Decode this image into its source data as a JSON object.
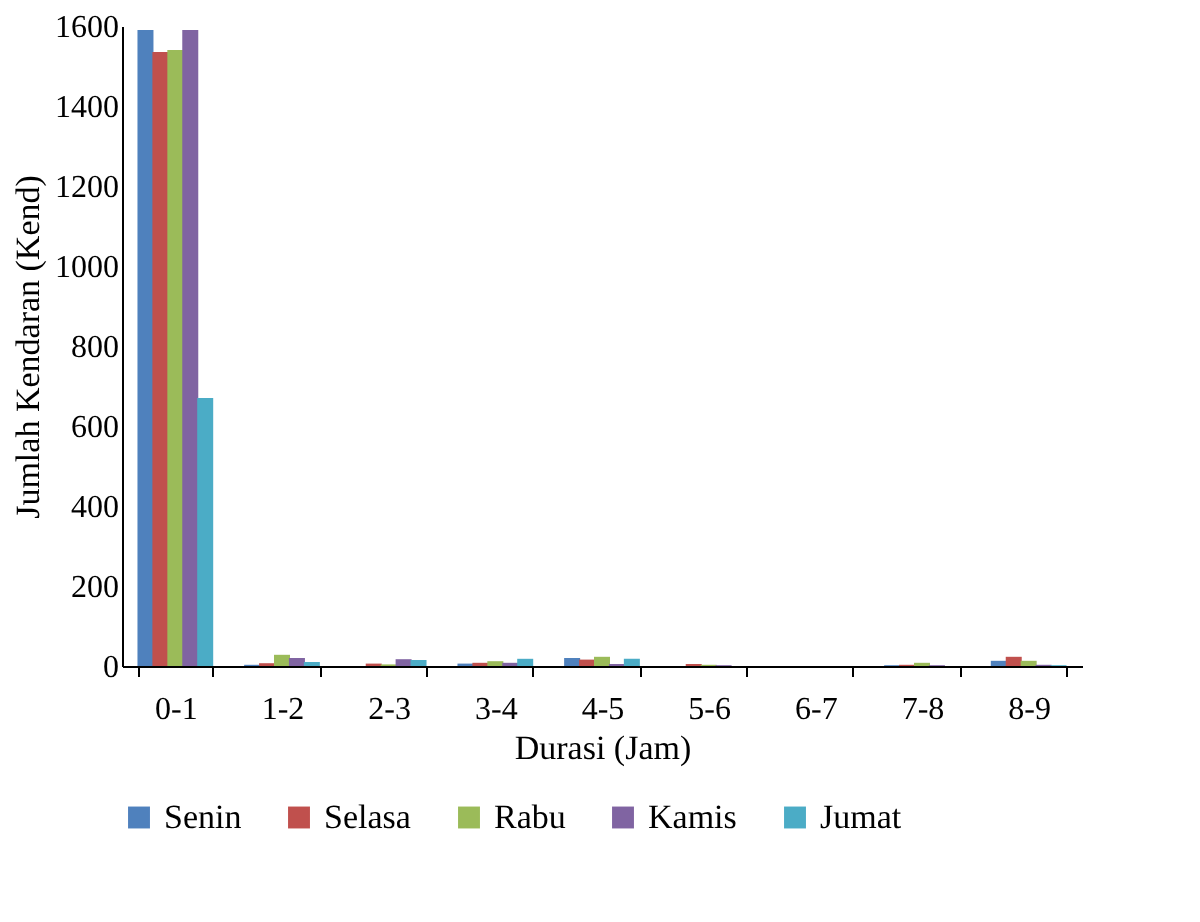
{
  "chart_data": {
    "type": "bar",
    "xlabel": "Durasi (Jam)",
    "ylabel": "Jumlah Kendaran (Kend)",
    "categories": [
      "0-1",
      "1-2",
      "2-3",
      "3-4",
      "4-5",
      "5-6",
      "6-7",
      "7-8",
      "8-9"
    ],
    "series": [
      {
        "name": "Senin",
        "color": "#4f81bd",
        "values": [
          1590,
          3,
          0,
          6,
          20,
          0,
          0,
          2,
          13
        ]
      },
      {
        "name": "Selasa",
        "color": "#c0504d",
        "values": [
          1535,
          7,
          6,
          8,
          16,
          5,
          0,
          3,
          23
        ]
      },
      {
        "name": "Rabu",
        "color": "#9bbb59",
        "values": [
          1540,
          28,
          4,
          12,
          23,
          3,
          0,
          8,
          13
        ]
      },
      {
        "name": "Kamis",
        "color": "#8064a2",
        "values": [
          1590,
          20,
          17,
          8,
          5,
          2,
          0,
          2,
          3
        ]
      },
      {
        "name": "Jumat",
        "color": "#4bacc6",
        "values": [
          670,
          10,
          15,
          18,
          18,
          0,
          0,
          0,
          2
        ]
      }
    ],
    "ylim": [
      0,
      1600
    ],
    "yticks": [
      0,
      200,
      400,
      600,
      800,
      1000,
      1200,
      1400,
      1600
    ],
    "grid": false,
    "legend": "bottom"
  }
}
